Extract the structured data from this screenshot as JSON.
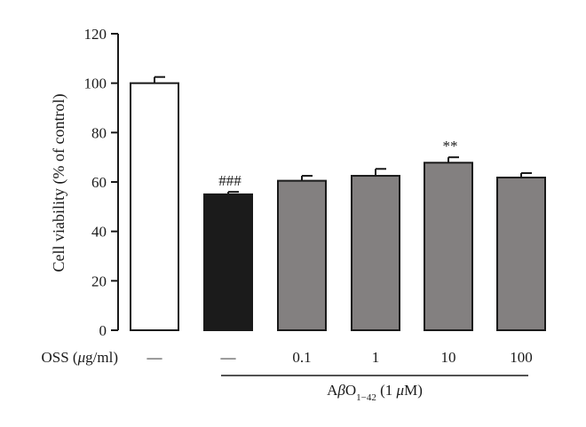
{
  "chart_data": {
    "type": "bar",
    "ylabel": "Cell viability (% of control)",
    "ylim": [
      0,
      120
    ],
    "yticks": [
      0,
      20,
      40,
      60,
      80,
      100,
      120
    ],
    "x_row_label": "OSS (μg/ml)",
    "categories": [
      "—",
      "—",
      "0.1",
      "1",
      "10",
      "100"
    ],
    "values": [
      100,
      55,
      60.5,
      62.5,
      67.8,
      61.8
    ],
    "errors": [
      2.5,
      1.0,
      2.0,
      2.8,
      2.2,
      1.8
    ],
    "bar_colors": [
      "#ffffff",
      "#1b1b1b",
      "#838080",
      "#838080",
      "#838080",
      "#838080"
    ],
    "annotations": [
      {
        "bar_index": 1,
        "text": "###"
      },
      {
        "bar_index": 4,
        "text": "**"
      }
    ],
    "bracket": {
      "from_bar": 1,
      "to_bar": 5,
      "label_prefix": "A",
      "label_beta": "β",
      "label_O": "O",
      "label_sub": "1−42",
      "label_suffix": " (1 μM)"
    },
    "grid": false
  }
}
